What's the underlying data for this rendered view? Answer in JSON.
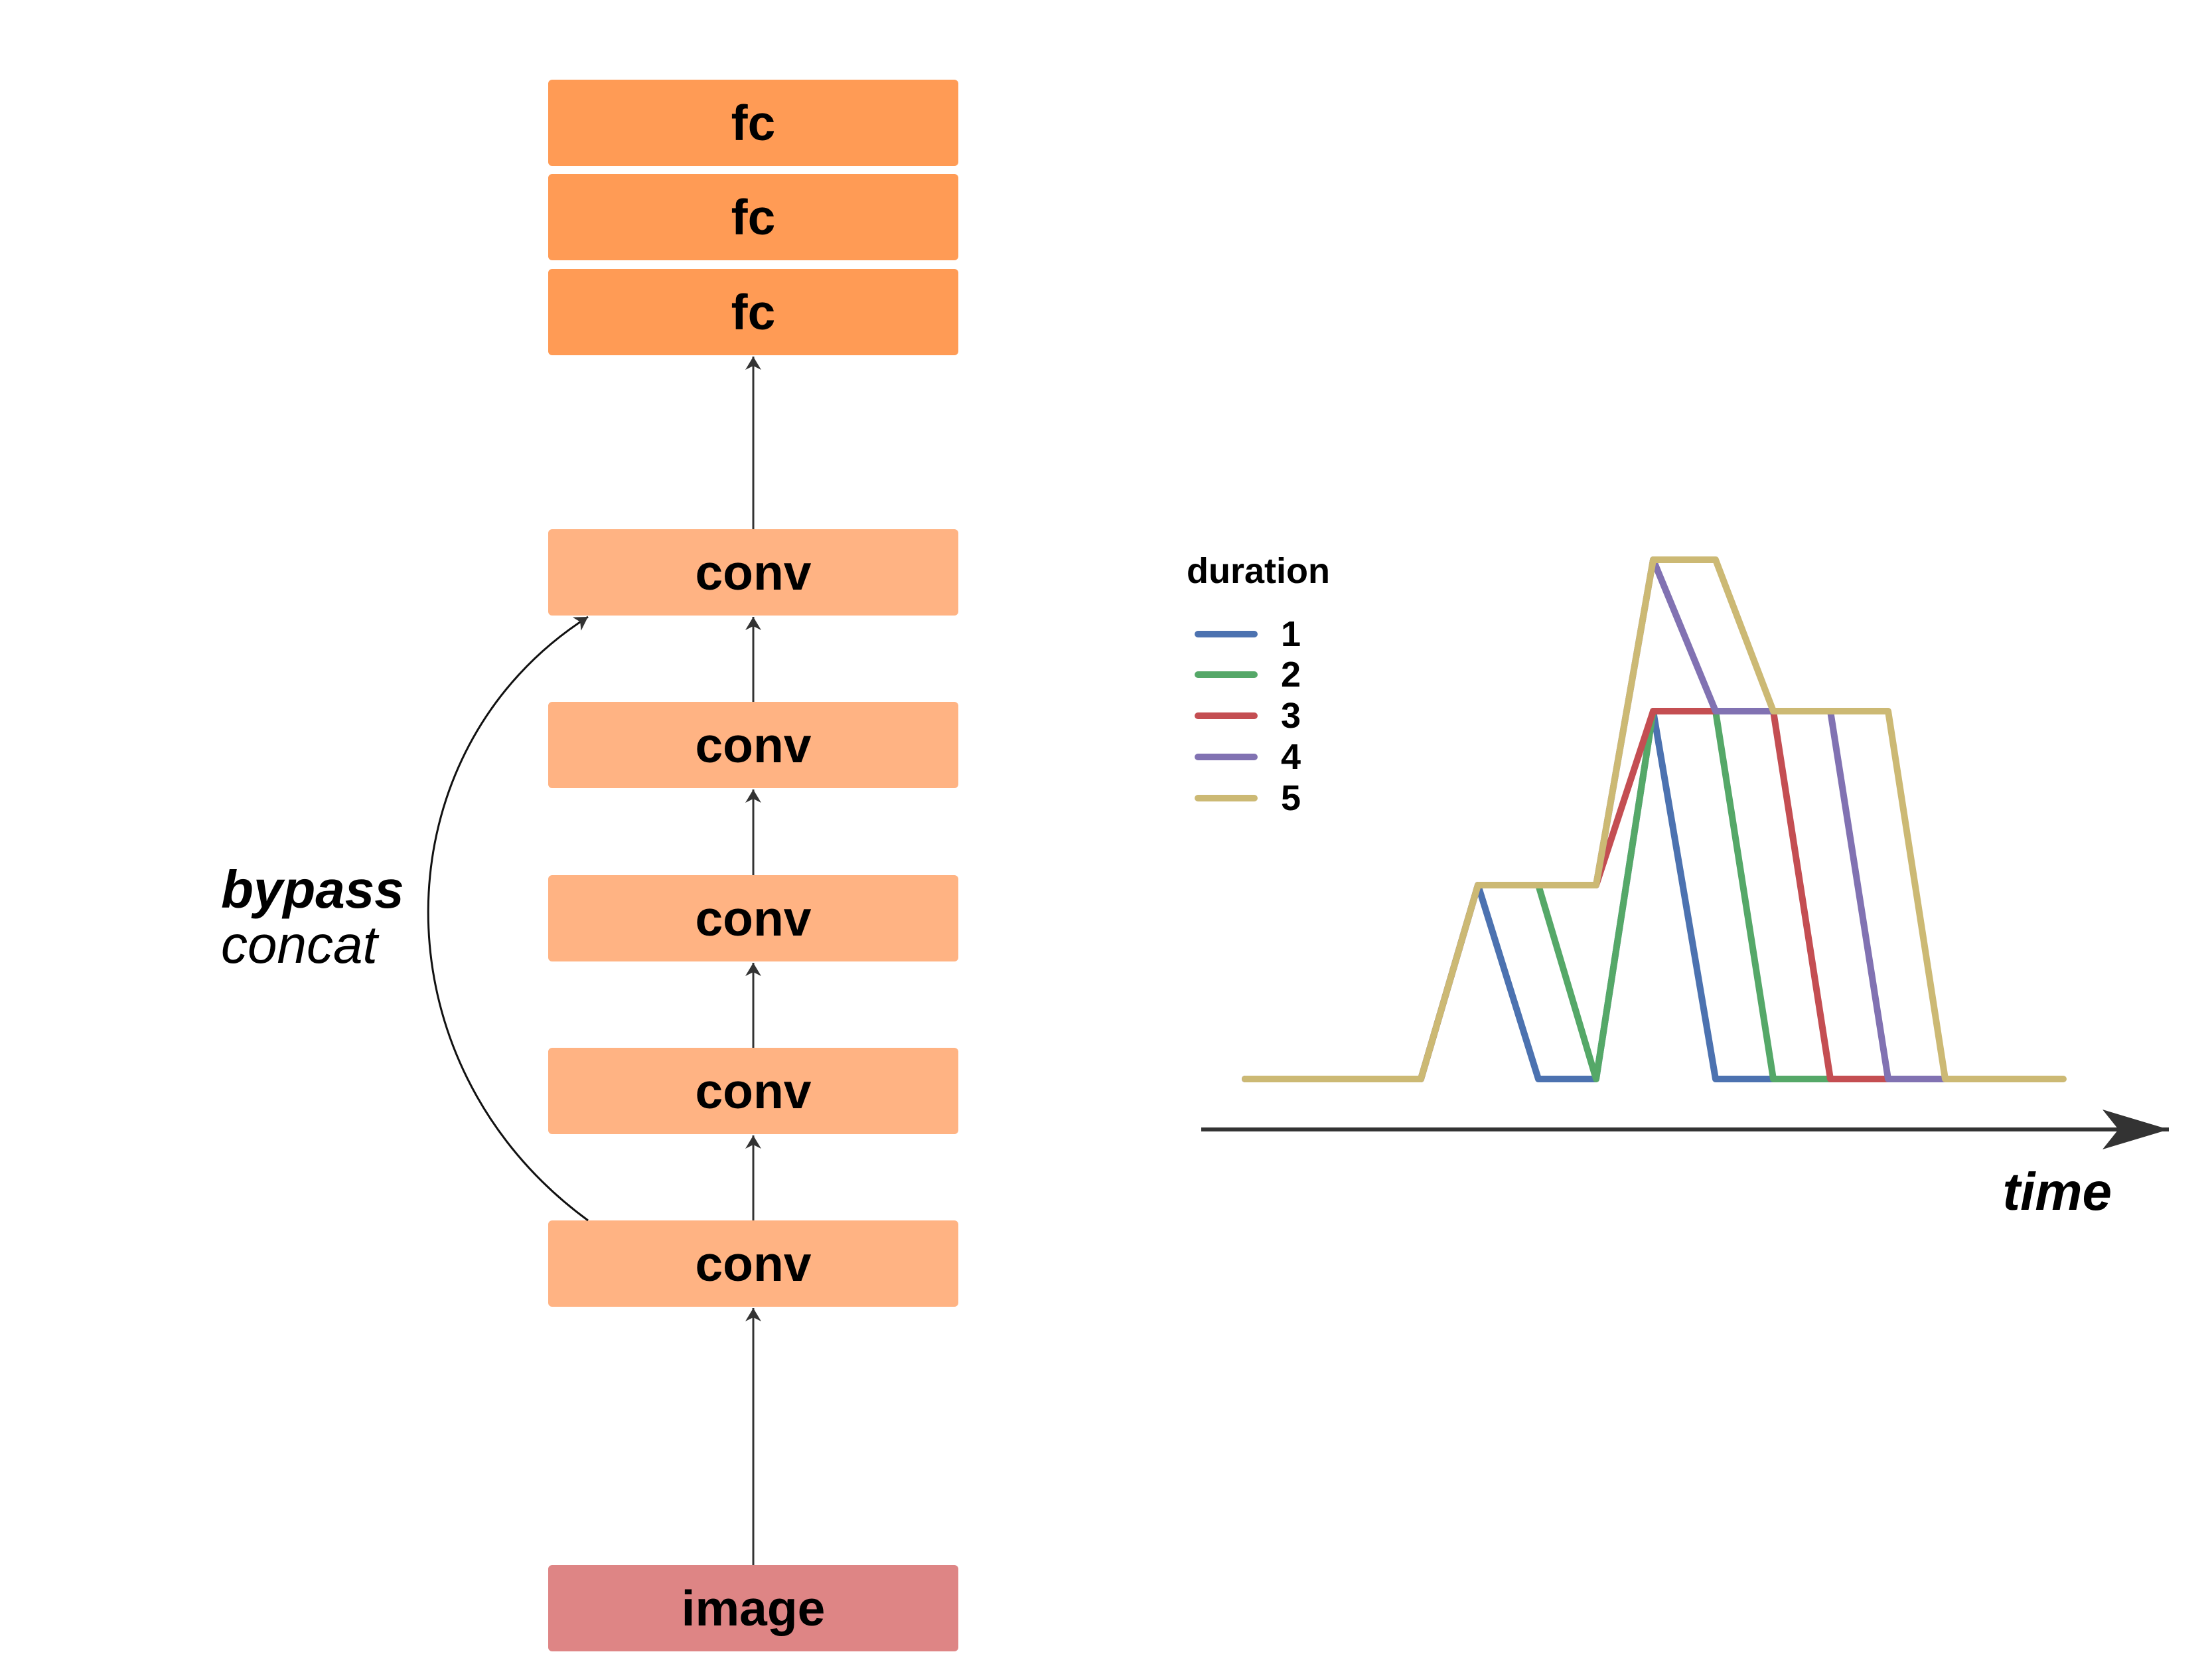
{
  "network": {
    "blocks": [
      {
        "label": "fc",
        "color": "#ff9b55"
      },
      {
        "label": "fc",
        "color": "#ff9b55"
      },
      {
        "label": "fc",
        "color": "#ff9b55"
      },
      {
        "label": "conv",
        "color": "#ffb383"
      },
      {
        "label": "conv",
        "color": "#ffb383"
      },
      {
        "label": "conv",
        "color": "#ffb383"
      },
      {
        "label": "conv",
        "color": "#ffb383"
      },
      {
        "label": "conv",
        "color": "#ffb383"
      },
      {
        "label": "image",
        "color": "#de8585"
      }
    ],
    "bypass": {
      "line1": "bypass",
      "line2": "concat"
    }
  },
  "timing_chart": {
    "legend_title": "duration",
    "axis_label": "time",
    "series": [
      {
        "name": "1",
        "color": "#4c72b0"
      },
      {
        "name": "2",
        "color": "#55a868"
      },
      {
        "name": "3",
        "color": "#c44e52"
      },
      {
        "name": "4",
        "color": "#8172b2"
      },
      {
        "name": "5",
        "color": "#ccb974"
      }
    ]
  }
}
